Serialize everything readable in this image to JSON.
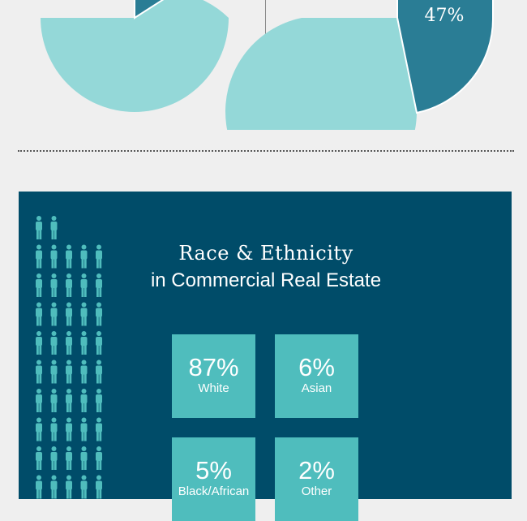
{
  "pies": [
    {
      "colors": {
        "light": "#94d8d8",
        "dark": "#2a7d95"
      }
    },
    {
      "label": "47%",
      "colors": {
        "light": "#94d8d8",
        "dark": "#2a7d95"
      }
    }
  ],
  "panel": {
    "title": "Race & Ethnicity",
    "subtitle": "in Commercial Real Estate",
    "background": "#004c69",
    "icon": "person-icon",
    "stats": [
      {
        "value": "87%",
        "label": "White"
      },
      {
        "value": "6%",
        "label": "Asian"
      },
      {
        "value": "5%",
        "label": "Black/African"
      },
      {
        "value": "2%",
        "label": "Other"
      }
    ]
  }
}
